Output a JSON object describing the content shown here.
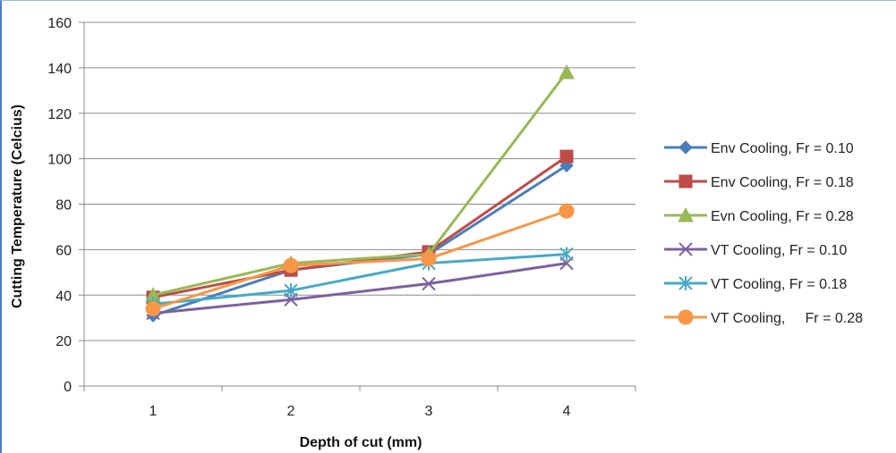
{
  "chart_data": {
    "type": "line",
    "title": "",
    "xlabel": "Depth of cut (mm)",
    "ylabel": "Cutting Temperature (Celcius)",
    "categories": [
      "1",
      "2",
      "3",
      "4"
    ],
    "ylim": [
      0,
      160
    ],
    "yticks": [
      "0",
      "20",
      "40",
      "60",
      "80",
      "100",
      "120",
      "140",
      "160"
    ],
    "grid": "horizontal",
    "legend_position": "right",
    "series": [
      {
        "name": "Env Cooling, Fr = 0.10",
        "values": [
          31,
          51,
          58,
          97
        ],
        "color": "#4a7ebb",
        "marker": "diamond"
      },
      {
        "name": "Env Cooling, Fr = 0.18",
        "values": [
          39,
          51,
          59,
          101
        ],
        "color": "#be4b48",
        "marker": "square"
      },
      {
        "name": "Evn Cooling, Fr = 0.28",
        "values": [
          40,
          54,
          58,
          138
        ],
        "color": "#98b954",
        "marker": "triangle"
      },
      {
        "name": "VT Cooling, Fr = 0.10",
        "values": [
          32,
          38,
          45,
          54
        ],
        "color": "#7d60a0",
        "marker": "x"
      },
      {
        "name": "VT Cooling, Fr = 0.18",
        "values": [
          36,
          42,
          54,
          58
        ],
        "color": "#46aac5",
        "marker": "star"
      },
      {
        "name": "VT Cooling,     Fr = 0.28",
        "values": [
          34,
          53,
          56,
          77
        ],
        "color": "#f79646",
        "marker": "circle"
      }
    ]
  }
}
